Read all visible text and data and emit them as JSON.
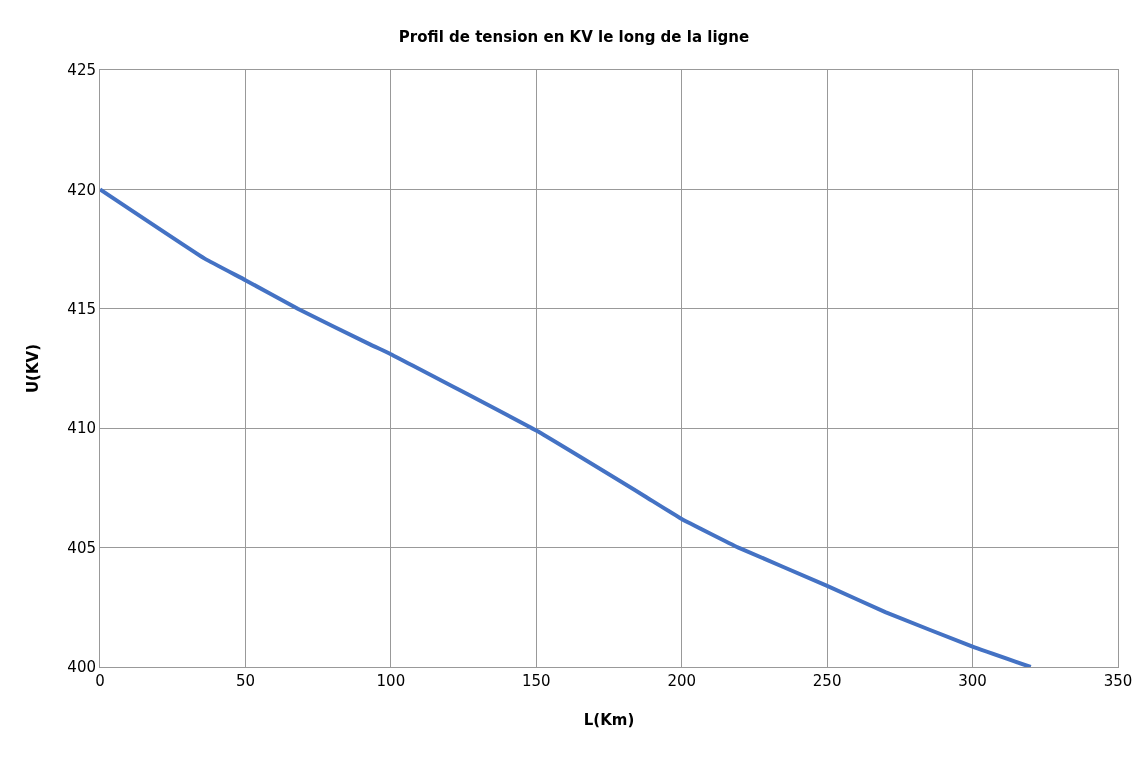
{
  "chart_data": {
    "type": "line",
    "title": "Profil de tension en KV le long de la ligne",
    "xlabel": "L(Km)",
    "ylabel": "U(KV)",
    "x": [
      0,
      36,
      50,
      68,
      93,
      100,
      150,
      188,
      200,
      219.5,
      250,
      270,
      300,
      320
    ],
    "series": [
      {
        "color": "#4472c4",
        "values": [
          420,
          417.1,
          416.2,
          415,
          413.5,
          413.1,
          409.9,
          407.1,
          406.2,
          405,
          403.4,
          402.3,
          400.85,
          400
        ]
      }
    ],
    "xlim": [
      0,
      350
    ],
    "xticks": [
      0,
      50,
      100,
      150,
      200,
      250,
      300,
      350
    ],
    "ylim": [
      400,
      425
    ],
    "yticks": [
      400,
      405,
      410,
      415,
      420,
      425
    ],
    "grid": true,
    "legend": false,
    "marker": "none",
    "line_style": "solid"
  }
}
